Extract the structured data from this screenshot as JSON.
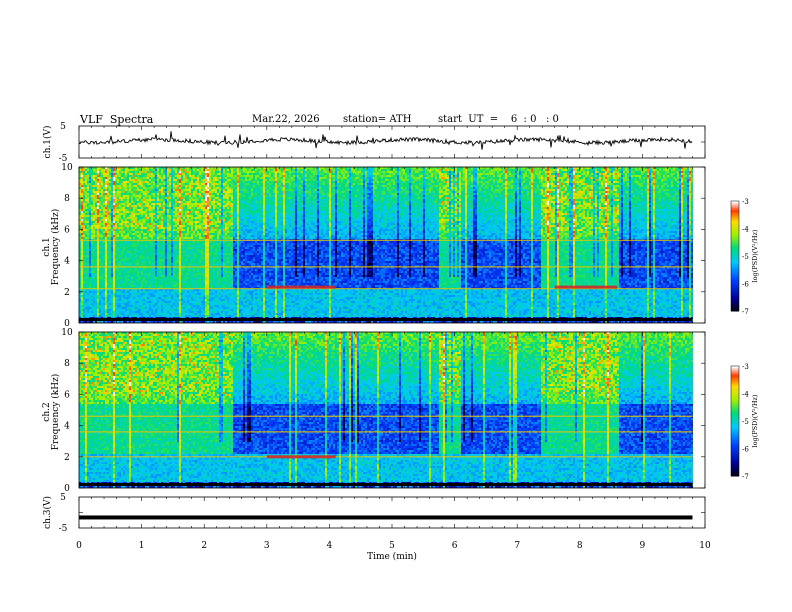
{
  "header": {
    "title": "VLF  Spectra",
    "date": "Mar.22, 2026",
    "station": "station= ATH",
    "start": "start  UT  =    6  : 0   : 0"
  },
  "chart_data": [
    {
      "type": "line",
      "panel": "ch1-waveform",
      "ylabel": "ch.1(V)",
      "ylim": [
        -5,
        5
      ],
      "yticks": [
        "5",
        "-5"
      ],
      "xlim": [
        0,
        10
      ],
      "description_level_v": 0.3,
      "x_end_min": 9.8
    },
    {
      "type": "heatmap",
      "panel": "ch1-spectrogram",
      "ylabel": "ch.1\nFrequency  (kHz)",
      "ylim": [
        0,
        10
      ],
      "yticks": [
        "0",
        "2",
        "4",
        "6",
        "8",
        "10"
      ],
      "xlim": [
        0,
        10
      ],
      "x_end_min": 9.8,
      "colorbar": {
        "label": "log(PSD)(V²/Hz)",
        "range": [
          -7,
          -3
        ],
        "ticks": [
          "-3",
          "-4",
          "-5",
          "-6",
          "-7"
        ]
      },
      "bright_bursts_min": [
        [
          0.0,
          2.45
        ],
        [
          5.75,
          6.1
        ],
        [
          7.35,
          8.6
        ]
      ],
      "strong_lines_khz": [
        2.2,
        3.6,
        5.3
      ],
      "interference_trace_khz": 2.3,
      "interference_trace_min": [
        [
          3.0,
          4.1
        ],
        [
          7.6,
          8.6
        ]
      ]
    },
    {
      "type": "heatmap",
      "panel": "ch2-spectrogram",
      "ylabel": "ch.2\nFrequency  (kHz)",
      "ylim": [
        0,
        10
      ],
      "yticks": [
        "0",
        "2",
        "4",
        "6",
        "8",
        "10"
      ],
      "xlim": [
        0,
        10
      ],
      "x_end_min": 9.8,
      "colorbar": {
        "label": "log(PSD)(V²/Hz)",
        "range": [
          -7,
          -3
        ],
        "ticks": [
          "-3",
          "-4",
          "-5",
          "-6",
          "-7"
        ]
      },
      "bright_bursts_min": [
        [
          0.0,
          2.45
        ],
        [
          5.75,
          6.1
        ],
        [
          7.35,
          8.6
        ]
      ],
      "strong_lines_khz": [
        2.0,
        3.6,
        4.6
      ],
      "interference_trace_khz": 2.0,
      "interference_trace_min": [
        [
          3.0,
          4.1
        ]
      ]
    },
    {
      "type": "line",
      "panel": "ch3-waveform",
      "ylabel": "ch.3(V)",
      "ylim": [
        -5,
        5
      ],
      "yticks": [
        "5",
        "-5"
      ],
      "xlim": [
        0,
        10
      ],
      "level_v": -1.6,
      "x_end_min": 9.8,
      "xlabel": "Time  (min)",
      "xticks": [
        "0",
        "1",
        "2",
        "3",
        "4",
        "5",
        "6",
        "7",
        "8",
        "9",
        "10"
      ]
    }
  ]
}
